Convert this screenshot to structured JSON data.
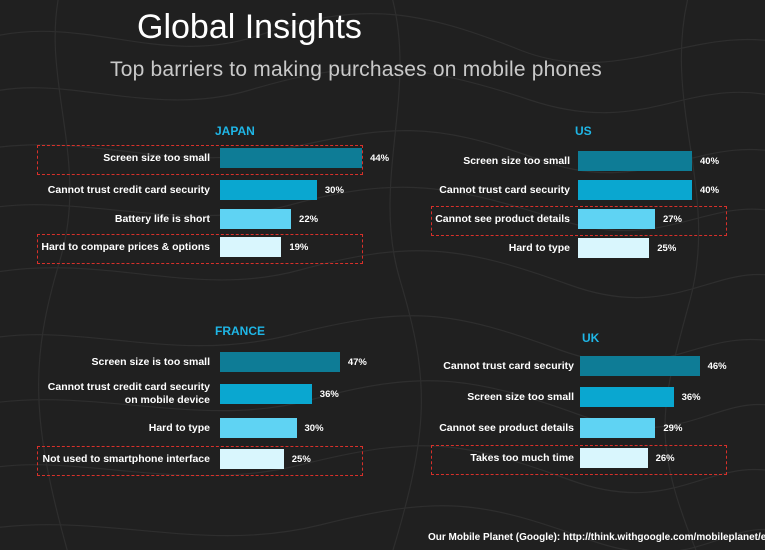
{
  "title": "Global Insights",
  "subtitle": "Top barriers to making purchases on mobile phones",
  "source": "Our Mobile Planet (Google): http://think.withgoogle.com/mobileplanet/en/",
  "colors": {
    "background": "#202020",
    "panel_title": "#1fb6e6",
    "highlight": "#d8302a",
    "bar_shades": [
      "#0e7c96",
      "#0aa7d0",
      "#5fd3f3",
      "#d9f6fd"
    ]
  },
  "chart_data": [
    {
      "type": "bar",
      "title": "JAPAN",
      "categories": [
        "Screen size too small",
        "Cannot trust credit card security",
        "Battery life is short",
        "Hard to compare prices & options"
      ],
      "values": [
        44,
        30,
        22,
        19
      ],
      "value_labels": [
        "44%",
        "30%",
        "22%",
        "19%"
      ],
      "highlighted": [
        0,
        3
      ],
      "orientation": "horizontal"
    },
    {
      "type": "bar",
      "title": "US",
      "categories": [
        "Screen size too small",
        "Cannot trust card security",
        "Cannot see product details",
        "Hard to type"
      ],
      "values": [
        40,
        40,
        27,
        25
      ],
      "value_labels": [
        "40%",
        "40%",
        "27%",
        "25%"
      ],
      "highlighted": [
        2
      ],
      "orientation": "horizontal"
    },
    {
      "type": "bar",
      "title": "FRANCE",
      "categories": [
        "Screen size is too small",
        "Cannot trust credit card security on mobile device",
        "Hard to type",
        "Not used to smartphone interface"
      ],
      "values": [
        47,
        36,
        30,
        25
      ],
      "value_labels": [
        "47%",
        "36%",
        "30%",
        "25%"
      ],
      "highlighted": [
        3
      ],
      "orientation": "horizontal"
    },
    {
      "type": "bar",
      "title": "UK",
      "categories": [
        "Cannot trust card security",
        "Screen size too small",
        "Cannot see product details",
        "Takes too much time"
      ],
      "values": [
        46,
        36,
        29,
        26
      ],
      "value_labels": [
        "46%",
        "36%",
        "29%",
        "26%"
      ],
      "highlighted": [
        3
      ],
      "orientation": "horizontal"
    }
  ]
}
